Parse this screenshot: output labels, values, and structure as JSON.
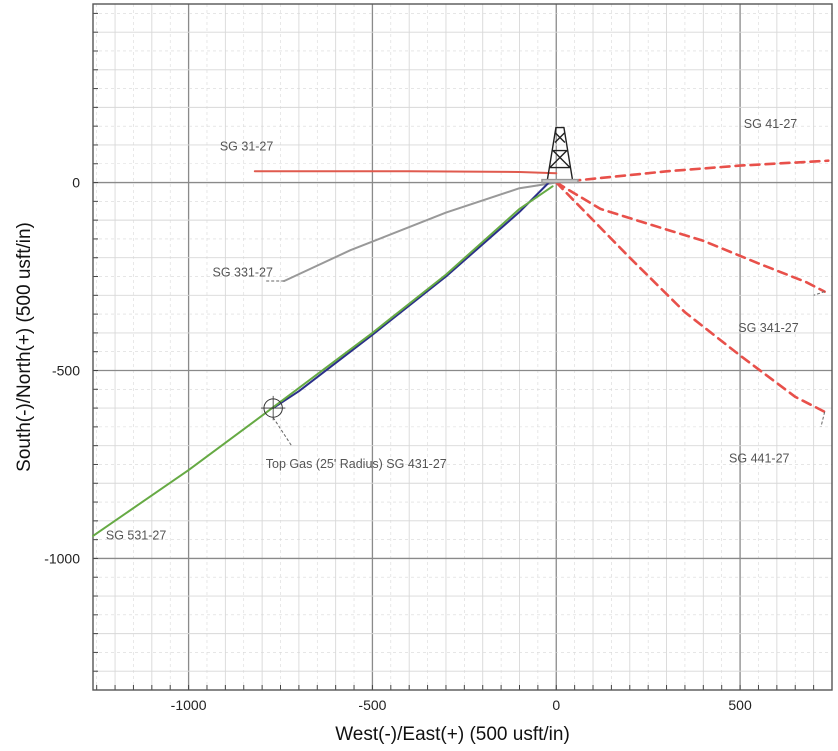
{
  "chart_data": {
    "type": "line",
    "xlabel": "West(-)/East(+) (500 usft/in)",
    "ylabel": "South(-)/North(+) (500 usft/in)",
    "xlim": [
      -1260,
      750
    ],
    "ylim": [
      -1350,
      475
    ],
    "x_ticks": [
      -1000,
      -500,
      0,
      500
    ],
    "y_ticks": [
      0,
      -500,
      -1000
    ],
    "grid": true,
    "colors": {
      "grid_major": "#8a8a8a",
      "grid_minor": "#d8d8d8",
      "red": "#e05a4e",
      "dashed": "#e8504a",
      "gray": "#999999",
      "blue": "#2a2f8a",
      "green": "#66aa44"
    },
    "series": [
      {
        "name": "SG 31-27",
        "style": "solid",
        "color": "#e05a4e",
        "points": [
          [
            -820,
            30
          ],
          [
            -400,
            30
          ],
          [
            -100,
            28
          ],
          [
            0,
            25
          ]
        ]
      },
      {
        "name": "SG 331-27",
        "style": "solid",
        "color": "#999999",
        "points": [
          [
            -740,
            -262
          ],
          [
            -560,
            -180
          ],
          [
            -300,
            -80
          ],
          [
            -100,
            -15
          ],
          [
            0,
            0
          ]
        ]
      },
      {
        "name": "SG 431-27",
        "style": "solid",
        "color": "#2a2f8a",
        "points": [
          [
            -770,
            -600
          ],
          [
            -700,
            -555
          ],
          [
            -500,
            -405
          ],
          [
            -300,
            -250
          ],
          [
            -100,
            -78
          ],
          [
            -20,
            0
          ]
        ]
      },
      {
        "name": "SG 531-27",
        "style": "solid",
        "color": "#66aa44",
        "points": [
          [
            -1260,
            -940
          ],
          [
            -1000,
            -765
          ],
          [
            -800,
            -620
          ],
          [
            -500,
            -400
          ],
          [
            -300,
            -245
          ],
          [
            -100,
            -70
          ],
          [
            -10,
            -10
          ]
        ]
      },
      {
        "name": "SG 41-27",
        "style": "dashed",
        "color": "#e8504a",
        "points": [
          [
            0,
            0
          ],
          [
            100,
            10
          ],
          [
            300,
            30
          ],
          [
            500,
            45
          ],
          [
            740,
            58
          ]
        ]
      },
      {
        "name": "SG 341-27",
        "style": "dashed",
        "color": "#e8504a",
        "points": [
          [
            0,
            0
          ],
          [
            120,
            -70
          ],
          [
            250,
            -110
          ],
          [
            400,
            -155
          ],
          [
            550,
            -215
          ],
          [
            680,
            -265
          ],
          [
            730,
            -290
          ]
        ]
      },
      {
        "name": "SG 441-27",
        "style": "dashed",
        "color": "#e8504a",
        "points": [
          [
            0,
            0
          ],
          [
            80,
            -80
          ],
          [
            200,
            -200
          ],
          [
            350,
            -345
          ],
          [
            500,
            -460
          ],
          [
            650,
            -570
          ],
          [
            730,
            -610
          ]
        ]
      }
    ],
    "labels": [
      {
        "text": "SG 31-27",
        "x": -915,
        "y": 85
      },
      {
        "text": "SG 41-27",
        "x": 510,
        "y": 145
      },
      {
        "text": "SG 331-27",
        "x": -935,
        "y": -250
      },
      {
        "text": "SG 341-27",
        "x": 495,
        "y": -398
      },
      {
        "text": "Top Gas (25' Radius) SG 431-27",
        "x": -790,
        "y": -760
      },
      {
        "text": "SG 441-27",
        "x": 470,
        "y": -745
      },
      {
        "text": "SG 531-27",
        "x": -1225,
        "y": -950
      }
    ],
    "target": {
      "x": -770,
      "y": -600,
      "radius": 25
    },
    "rig": {
      "x": 10,
      "y": 0
    }
  }
}
